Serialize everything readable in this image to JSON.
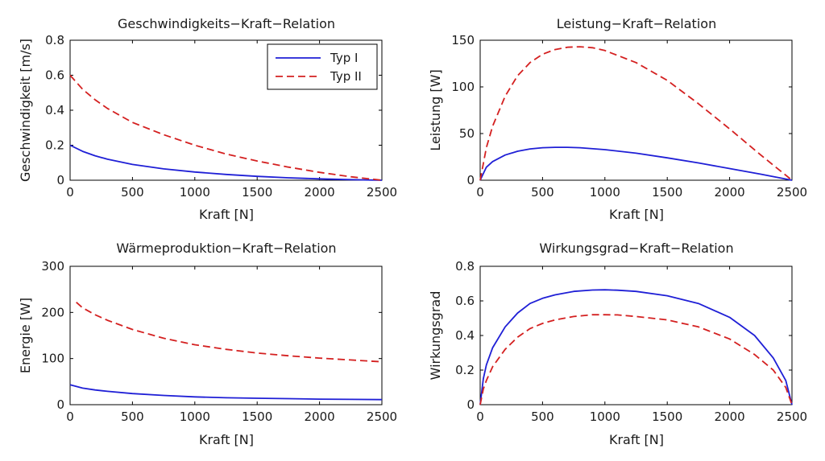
{
  "chart_data": [
    {
      "type": "line",
      "title": "Geschwindigkeits−Kraft−Relation",
      "xlabel": "Kraft [N]",
      "ylabel": "Geschwindigkeit [m/s]",
      "xlim": [
        0,
        2500
      ],
      "ylim": [
        0,
        0.8
      ],
      "xticks": [
        0,
        500,
        1000,
        1500,
        2000,
        2500
      ],
      "yticks": [
        0,
        0.2,
        0.4,
        0.6,
        0.8
      ],
      "legend": "top-right",
      "series": [
        {
          "name": "Typ I",
          "color": "#1f1fd6",
          "style": "solid",
          "x": [
            0,
            100,
            200,
            300,
            500,
            750,
            1000,
            1250,
            1500,
            1750,
            2000,
            2250,
            2500
          ],
          "y": [
            0.2,
            0.165,
            0.14,
            0.12,
            0.09,
            0.065,
            0.047,
            0.033,
            0.022,
            0.014,
            0.008,
            0.003,
            0
          ]
        },
        {
          "name": "Typ II",
          "color": "#d42020",
          "style": "dashed",
          "x": [
            0,
            100,
            200,
            300,
            500,
            750,
            1000,
            1250,
            1500,
            1750,
            2000,
            2250,
            2500
          ],
          "y": [
            0.6,
            0.52,
            0.46,
            0.41,
            0.33,
            0.26,
            0.2,
            0.15,
            0.11,
            0.075,
            0.045,
            0.02,
            0
          ]
        }
      ]
    },
    {
      "type": "line",
      "title": "Leistung−Kraft−Relation",
      "xlabel": "Kraft [N]",
      "ylabel": "Leistung [W]",
      "xlim": [
        0,
        2500
      ],
      "ylim": [
        0,
        150
      ],
      "xticks": [
        0,
        500,
        1000,
        1500,
        2000,
        2500
      ],
      "yticks": [
        0,
        50,
        100,
        150
      ],
      "series": [
        {
          "name": "Typ I",
          "color": "#1f1fd6",
          "style": "solid",
          "x": [
            0,
            50,
            100,
            200,
            300,
            400,
            500,
            600,
            700,
            800,
            1000,
            1250,
            1500,
            1750,
            2000,
            2250,
            2500
          ],
          "y": [
            0,
            14,
            20,
            27,
            31,
            33.5,
            34.8,
            35.3,
            35.3,
            34.8,
            32.8,
            29,
            24,
            18.5,
            12.5,
            6.5,
            0
          ]
        },
        {
          "name": "Typ II",
          "color": "#d42020",
          "style": "dashed",
          "x": [
            0,
            50,
            100,
            200,
            300,
            400,
            500,
            600,
            700,
            800,
            900,
            1000,
            1250,
            1500,
            1750,
            2000,
            2250,
            2500
          ],
          "y": [
            0,
            35,
            58,
            90,
            112,
            126,
            135,
            140,
            142.5,
            143,
            142,
            139,
            126,
            107,
            82,
            55,
            27,
            0
          ]
        }
      ]
    },
    {
      "type": "line",
      "title": "Wärmeproduktion−Kraft−Relation",
      "xlabel": "Kraft [N]",
      "ylabel": "Energie [W]",
      "xlim": [
        0,
        2500
      ],
      "ylim": [
        0,
        300
      ],
      "xticks": [
        0,
        500,
        1000,
        1500,
        2000,
        2500
      ],
      "yticks": [
        0,
        100,
        200,
        300
      ],
      "series": [
        {
          "name": "Typ I",
          "color": "#1f1fd6",
          "style": "solid",
          "x": [
            0,
            100,
            200,
            300,
            500,
            750,
            1000,
            1250,
            1500,
            1750,
            2000,
            2250,
            2500
          ],
          "y": [
            43,
            36,
            32,
            29,
            24,
            20,
            17,
            15,
            14,
            13,
            12,
            11.5,
            11
          ]
        },
        {
          "name": "Typ II",
          "color": "#d42020",
          "style": "dashed",
          "x": [
            50,
            100,
            200,
            300,
            500,
            750,
            1000,
            1250,
            1500,
            1750,
            2000,
            2250,
            2500
          ],
          "y": [
            222,
            210,
            195,
            183,
            163,
            144,
            130,
            120,
            112,
            106,
            101,
            97,
            93
          ]
        }
      ]
    },
    {
      "type": "line",
      "title": "Wirkungsgrad−Kraft−Relation",
      "xlabel": "Kraft [N]",
      "ylabel": "Wirkungsgrad",
      "xlim": [
        0,
        2500
      ],
      "ylim": [
        0,
        0.8
      ],
      "xticks": [
        0,
        500,
        1000,
        1500,
        2000,
        2500
      ],
      "yticks": [
        0,
        0.2,
        0.4,
        0.6,
        0.8
      ],
      "series": [
        {
          "name": "Typ I",
          "color": "#1f1fd6",
          "style": "solid",
          "x": [
            0,
            25,
            50,
            100,
            200,
            300,
            400,
            500,
            600,
            750,
            900,
            1000,
            1100,
            1250,
            1500,
            1750,
            2000,
            2200,
            2350,
            2450,
            2500
          ],
          "y": [
            0,
            0.15,
            0.23,
            0.33,
            0.45,
            0.53,
            0.585,
            0.615,
            0.635,
            0.655,
            0.663,
            0.664,
            0.662,
            0.655,
            0.63,
            0.585,
            0.505,
            0.4,
            0.27,
            0.14,
            0
          ]
        },
        {
          "name": "Typ II",
          "color": "#d42020",
          "style": "dashed",
          "x": [
            0,
            25,
            50,
            100,
            200,
            300,
            400,
            500,
            600,
            750,
            900,
            1000,
            1100,
            1250,
            1500,
            1750,
            2000,
            2200,
            2350,
            2450,
            2500
          ],
          "y": [
            0,
            0.09,
            0.14,
            0.22,
            0.32,
            0.39,
            0.44,
            0.47,
            0.49,
            0.51,
            0.52,
            0.52,
            0.519,
            0.51,
            0.49,
            0.45,
            0.38,
            0.29,
            0.2,
            0.1,
            0
          ]
        }
      ]
    }
  ]
}
